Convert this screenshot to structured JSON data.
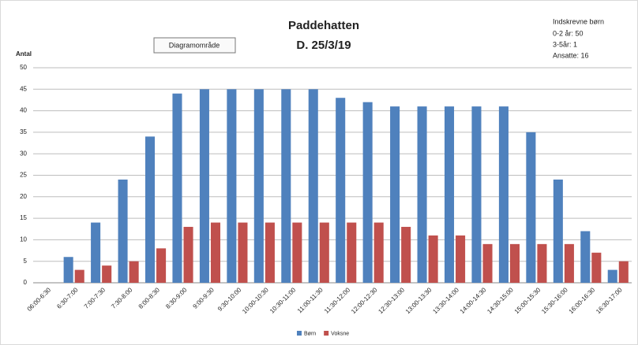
{
  "chart_data": {
    "type": "bar",
    "title": "Paddehatten",
    "subtitle": "D. 25/3/19",
    "y_label": "Antal",
    "tooltip": "Diagramområde",
    "annotations": [
      "Indskrevne børn",
      "0-2 år: 50",
      "3-5år: 1",
      "Ansatte: 16"
    ],
    "categories": [
      "06:00-6:30",
      "6:30-7:00",
      "7:00-7:30",
      "7:30-8:00",
      "8:00-8:30",
      "8:30-9:00",
      "9:00-9:30",
      "9:30-10:00",
      "10:00-10:30",
      "10:30-11:00",
      "11:00-11:30",
      "11:30-12:00",
      "12:00-12:30",
      "12:30-13:00",
      "13:00-13:30",
      "13:30-14:00",
      "14:00-14:30",
      "14:30-15:00",
      "15:00-15:30",
      "15:30-16:00",
      "16:00-16:30",
      "16:30-17:00"
    ],
    "series": [
      {
        "name": "Børn",
        "color": "#4f81bd",
        "values": [
          0,
          6,
          14,
          24,
          34,
          44,
          45,
          45,
          45,
          45,
          45,
          43,
          42,
          41,
          41,
          41,
          41,
          41,
          35,
          24,
          12,
          3
        ]
      },
      {
        "name": "Voksne",
        "color": "#c0504d",
        "values": [
          0,
          3,
          4,
          5,
          8,
          13,
          14,
          14,
          14,
          14,
          14,
          14,
          14,
          13,
          11,
          11,
          9,
          9,
          9,
          9,
          7,
          5
        ]
      }
    ],
    "ylim": [
      0,
      50
    ],
    "yticks": [
      0,
      5,
      10,
      15,
      20,
      25,
      30,
      35,
      40,
      45,
      50
    ],
    "grid": true,
    "legend": "bottom"
  }
}
